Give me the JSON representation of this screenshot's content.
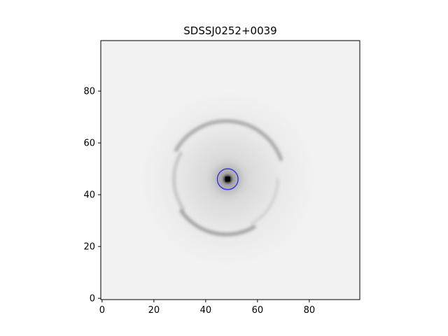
{
  "figure": {
    "title": "SDSSJ0252+0039"
  },
  "chart_data": {
    "type": "heatmap",
    "title": "SDSSJ0252+0039",
    "xlabel": "",
    "ylabel": "",
    "xlim": [
      -0.5,
      99.5
    ],
    "ylim": [
      -0.5,
      99.5
    ],
    "origin": "lower",
    "colormap": "gray_r",
    "xticks": [
      0,
      20,
      40,
      60,
      80
    ],
    "yticks": [
      0,
      20,
      40,
      60,
      80
    ],
    "xtick_labels": [
      "0",
      "20",
      "40",
      "60",
      "80"
    ],
    "ytick_labels": [
      "0",
      "20",
      "40",
      "60",
      "80"
    ],
    "grid": false,
    "features": {
      "core": {
        "x": 48.5,
        "y": 46
      },
      "ring": {
        "x": 48,
        "y": 46,
        "radius": 22
      }
    },
    "overlay_circle": {
      "x": 48.5,
      "y": 46,
      "radius": 4,
      "color": "#3a3ae6"
    }
  }
}
